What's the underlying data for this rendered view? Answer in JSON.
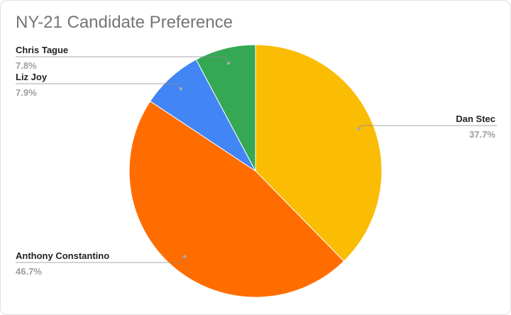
{
  "chart_data": {
    "type": "pie",
    "title": "NY-21 Candidate Preference",
    "slices": [
      {
        "label": "Dan Stec",
        "value": 37.7,
        "pct_label": "37.7%",
        "color": "#fbbc04"
      },
      {
        "label": "Anthony Constantino",
        "value": 46.7,
        "pct_label": "46.7%",
        "color": "#ff6d01"
      },
      {
        "label": "Liz Joy",
        "value": 7.9,
        "pct_label": "7.9%",
        "color": "#4285f4"
      },
      {
        "label": "Chris Tague",
        "value": 7.8,
        "pct_label": "7.8%",
        "color": "#34a853"
      }
    ],
    "legend": "none"
  }
}
